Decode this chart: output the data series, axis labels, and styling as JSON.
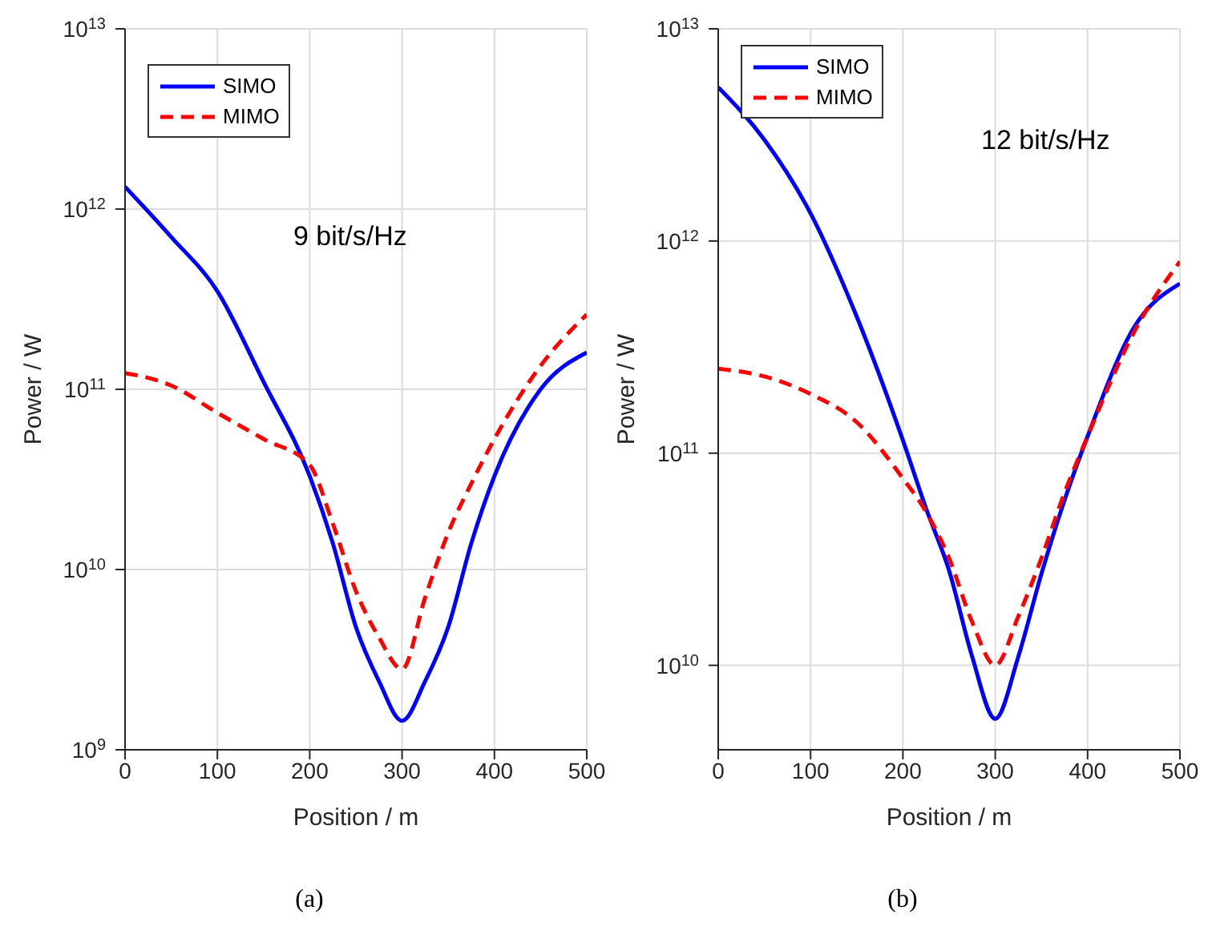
{
  "chart_data": [
    {
      "type": "line",
      "xlabel": "Position / m",
      "ylabel": "Power / W",
      "annotations": [
        "9 bit/s/Hz",
        "(a)"
      ],
      "log": "y",
      "grid": true,
      "legend": "top left",
      "marker": "none",
      "x": [
        0,
        50,
        100,
        150,
        200,
        225,
        250,
        275,
        300,
        325,
        350,
        375,
        400,
        450,
        500
      ],
      "xlim": [
        0,
        500
      ],
      "xticks": [
        0,
        100,
        200,
        300,
        400,
        500
      ],
      "ylim": [
        1000000000.0,
        10000000000000.0
      ],
      "yticks": [
        {
          "value": 1000000000.0,
          "label": "10$^{9}$"
        },
        {
          "value": 10000000000.0,
          "label": "10$^{10}$"
        },
        {
          "value": 100000000000.0,
          "label": "10$^{11}$"
        },
        {
          "value": 1000000000000.0,
          "label": "10$^{12}$"
        },
        {
          "value": 10000000000000.0,
          "label": "10$^{13}$"
        }
      ],
      "series": [
        {
          "name": "SIMO",
          "color": "#0000ff",
          "line_style": "solid",
          "values": [
            1330000000000.0,
            700000000000.0,
            350000000000.0,
            110000000000.0,
            33000000000.0,
            14000000000.0,
            4800000000.0,
            2400000000.0,
            1450000000.0,
            2400000000.0,
            4800000000.0,
            14000000000.0,
            33000000000.0,
            100000000000.0,
            160000000000.0
          ]
        },
        {
          "name": "MIMO",
          "color": "#ff0000",
          "line_style": "dashed",
          "values": [
            123000000000.0,
            105000000000.0,
            74000000000.0,
            53000000000.0,
            38000000000.0,
            18000000000.0,
            7600000000.0,
            4200000000.0,
            2800000000.0,
            7000000000.0,
            16000000000.0,
            30000000000.0,
            53000000000.0,
            135000000000.0,
            260000000000.0
          ]
        }
      ]
    },
    {
      "type": "line",
      "xlabel": "Position / m",
      "ylabel": "Power / W",
      "annotations": [
        "12 bit/s/Hz",
        "(b)"
      ],
      "log": "y",
      "grid": true,
      "legend": "top left",
      "marker": "none",
      "x": [
        0,
        50,
        100,
        150,
        200,
        225,
        250,
        275,
        300,
        325,
        350,
        375,
        400,
        450,
        500
      ],
      "xlim": [
        0,
        500
      ],
      "xticks": [
        0,
        100,
        200,
        300,
        400,
        500
      ],
      "ylim": [
        4000000000.0,
        10000000000000.0
      ],
      "yticks": [
        {
          "value": 10000000000.0,
          "label": "10$^{10}$"
        },
        {
          "value": 100000000000.0,
          "label": "10$^{11}$"
        },
        {
          "value": 1000000000000.0,
          "label": "10$^{12}$"
        },
        {
          "value": 10000000000000.0,
          "label": "10$^{13}$"
        }
      ],
      "series": [
        {
          "name": "SIMO",
          "color": "#0000ff",
          "line_style": "solid",
          "values": [
            5300000000000.0,
            3000000000000.0,
            1350000000000.0,
            440000000000.0,
            115000000000.0,
            55000000000.0,
            28000000000.0,
            11000000000.0,
            5600000000.0,
            11000000000.0,
            27000000000.0,
            60000000000.0,
            120000000000.0,
            390000000000.0,
            630000000000.0
          ]
        },
        {
          "name": "MIMO",
          "color": "#ff0000",
          "line_style": "dashed",
          "values": [
            250000000000.0,
            230000000000.0,
            190000000000.0,
            140000000000.0,
            76000000000.0,
            53000000000.0,
            32000000000.0,
            16000000000.0,
            10000000000.0,
            17000000000.0,
            32000000000.0,
            65000000000.0,
            120000000000.0,
            370000000000.0,
            800000000000.0
          ]
        }
      ]
    }
  ]
}
